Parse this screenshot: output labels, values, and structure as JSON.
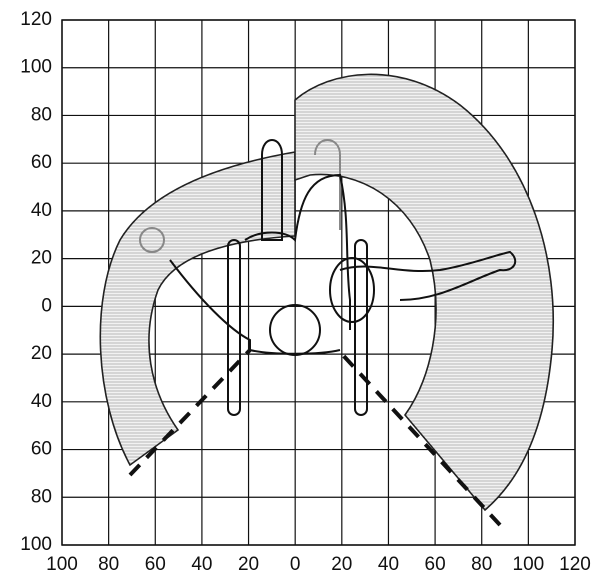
{
  "x_axis_labels": [
    "100",
    "80",
    "60",
    "40",
    "20",
    "0",
    "20",
    "40",
    "60",
    "80",
    "100",
    "120"
  ],
  "y_axis_labels": [
    "120",
    "100",
    "80",
    "60",
    "40",
    "20",
    "0",
    "20",
    "40",
    "60",
    "80",
    "100"
  ]
}
